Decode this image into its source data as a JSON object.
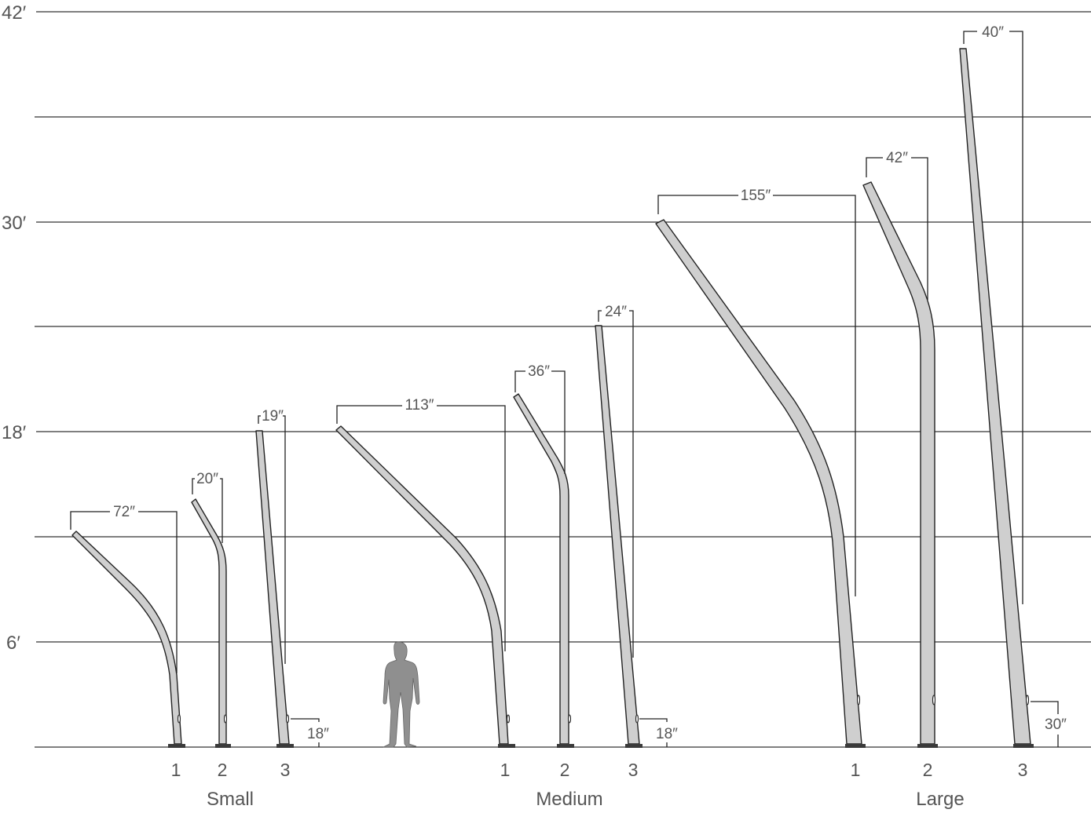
{
  "scale": {
    "labels": [
      "42′",
      "30′",
      "18′",
      "6′"
    ]
  },
  "groups": [
    {
      "name": "Small",
      "poles": [
        {
          "number": "1",
          "arm": "72″"
        },
        {
          "number": "2",
          "arm": "20″"
        },
        {
          "number": "3",
          "arm": "19″",
          "offset": "18″"
        }
      ]
    },
    {
      "name": "Medium",
      "poles": [
        {
          "number": "1",
          "arm": "113″"
        },
        {
          "number": "2",
          "arm": "36″"
        },
        {
          "number": "3",
          "arm": "24″",
          "offset": "18″"
        }
      ]
    },
    {
      "name": "Large",
      "poles": [
        {
          "number": "1",
          "arm": "155″"
        },
        {
          "number": "2",
          "arm": "42″"
        },
        {
          "number": "3",
          "arm": "40″",
          "offset": "30″"
        }
      ]
    }
  ],
  "colors": {
    "pole_fill": "#cfcfcf",
    "line": "#222222",
    "text": "#555555",
    "person": "#8f8f8f"
  }
}
